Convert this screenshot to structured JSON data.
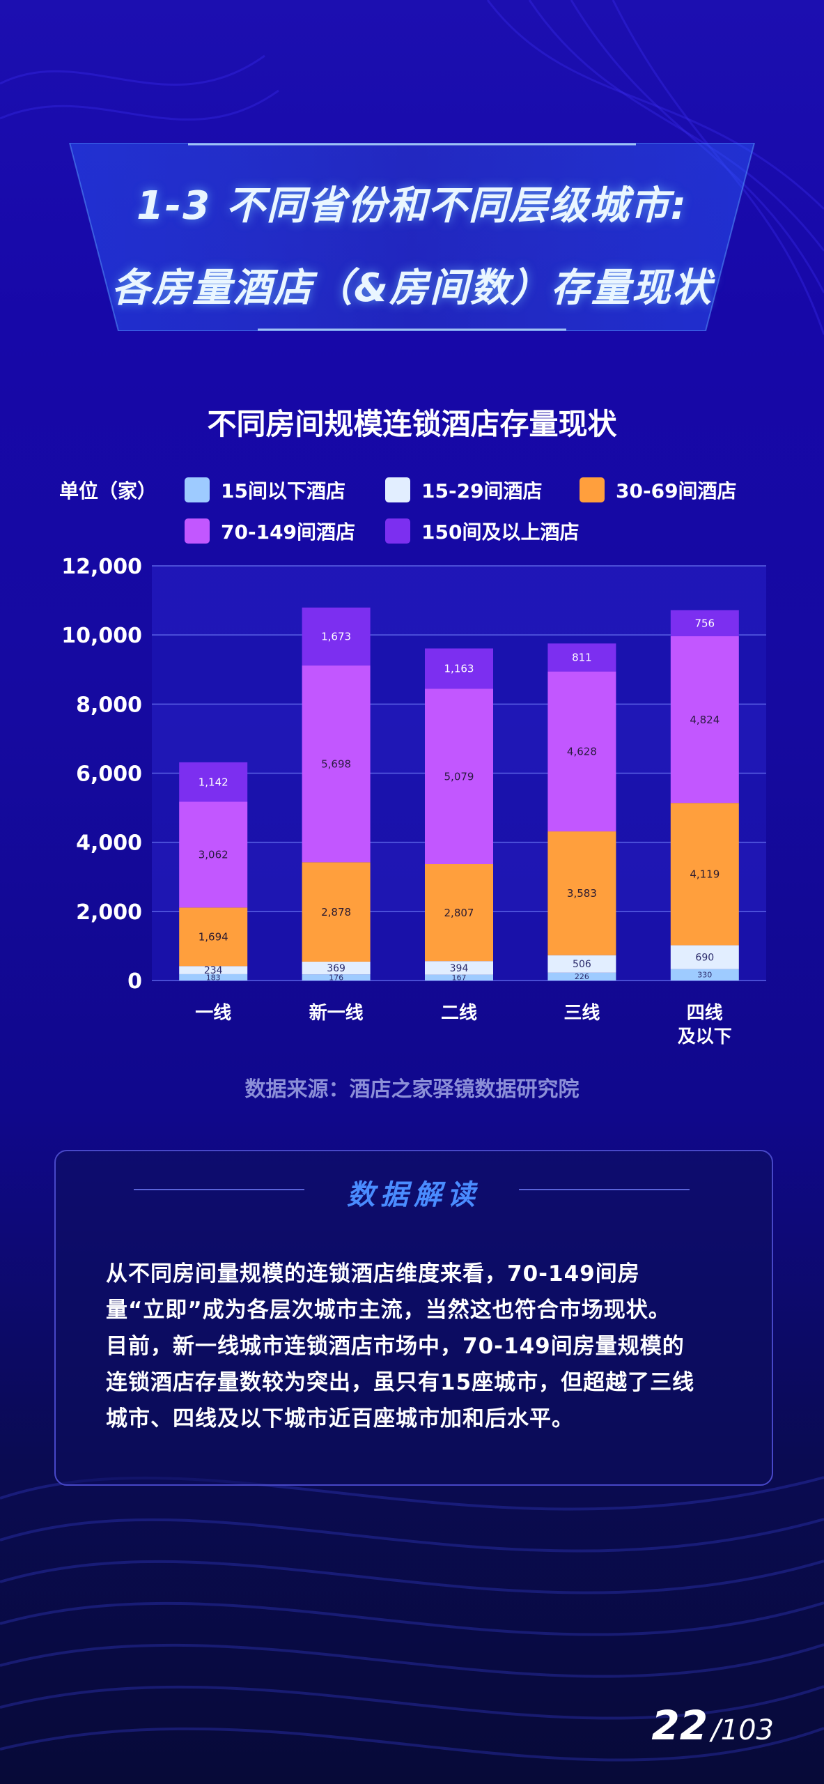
{
  "header": {
    "title_line1": "1-3 不同省份和不同层级城市:",
    "title_line2": "各房量酒店（&房间数）存量现状"
  },
  "chart_data": {
    "type": "bar",
    "stacked": true,
    "title": "不同房间规模连锁酒店存量现状",
    "unit": "单位（家）",
    "categories": [
      "一线",
      "新一线",
      "二线",
      "三线",
      "四线\n及以下"
    ],
    "series": [
      {
        "name": "15间以下酒店",
        "color": "#9ecbff",
        "values": [
          183,
          176,
          167,
          226,
          330
        ]
      },
      {
        "name": "15-29间酒店",
        "color": "#e2eeff",
        "values": [
          234,
          369,
          394,
          506,
          690
        ]
      },
      {
        "name": "30-69间酒店",
        "color": "#ff9f3d",
        "values": [
          1694,
          2878,
          2807,
          3583,
          4119
        ]
      },
      {
        "name": "70-149间酒店",
        "color": "#c257ff",
        "values": [
          3062,
          5698,
          5079,
          4628,
          4824
        ]
      },
      {
        "name": "150间及以上酒店",
        "color": "#7c2ff0",
        "values": [
          1142,
          1673,
          1163,
          811,
          756
        ]
      }
    ],
    "ylim": [
      0,
      12000
    ],
    "yticks": [
      "0",
      "2,000",
      "4,000",
      "6,000",
      "8,000",
      "10,000",
      "12,000"
    ],
    "grid": true,
    "legend_position": "top"
  },
  "source": "数据来源：酒店之家驿镜数据研究院",
  "panel": {
    "title": "数据解读",
    "lines": [
      "从不同房间量规模的连锁酒店维度来看，70-149间房",
      "量“立即”成为各层次城市主流，当然这也符合市场现状。",
      "目前，新一线城市连锁酒店市场中，70-149间房量规模的",
      "连锁酒店存量数较为突出，虽只有15座城市，但超越了三线",
      "城市、四线及以下城市近百座城市加和后水平。"
    ]
  },
  "page": {
    "current": "22",
    "total": "/103"
  },
  "colors": {
    "accent": "#4a8cff",
    "background": "#1708a8"
  }
}
